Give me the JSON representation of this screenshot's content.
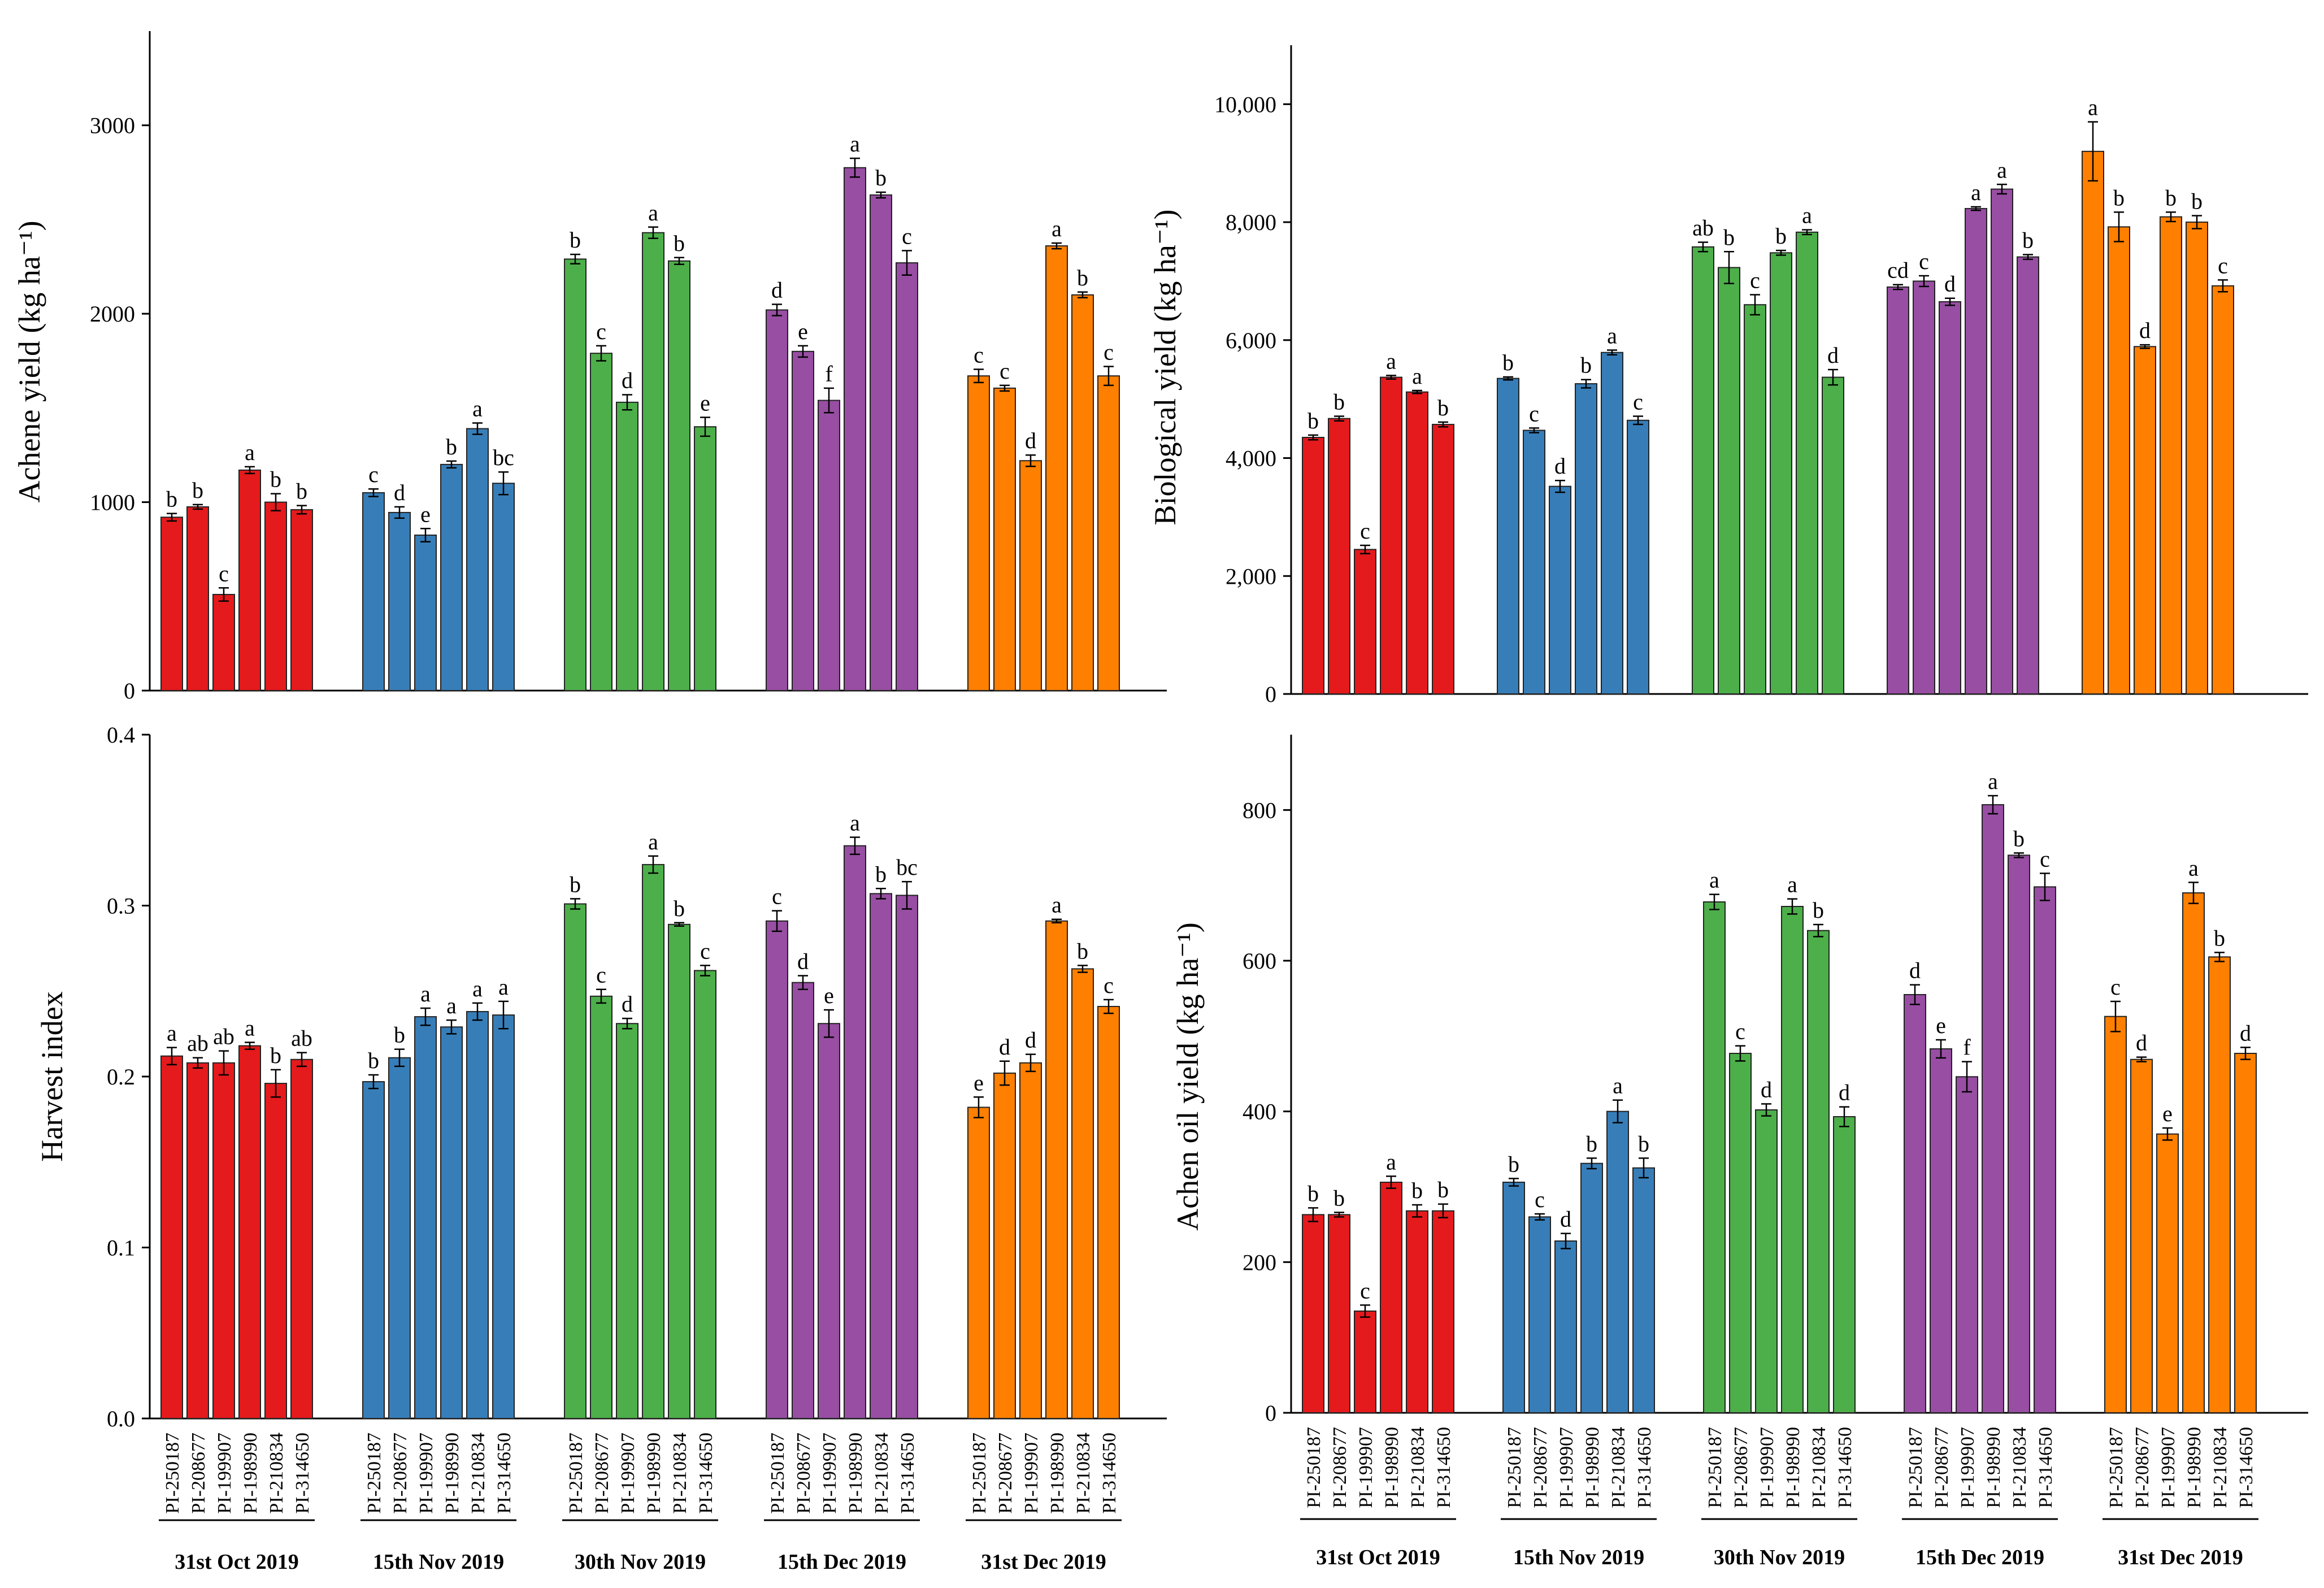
{
  "colors": {
    "31st Oct 2019": "#e41a1c",
    "15th Nov 2019": "#377eb8",
    "30th Nov 2019": "#4daf4a",
    "15th Dec 2019": "#984ea3",
    "31st Dec 2019": "#ff7f00"
  },
  "chart_data": [
    {
      "type": "bar",
      "ylabel": "Achene yield (kg ha⁻¹)",
      "ylim": [
        0,
        3500
      ],
      "yticks": [
        0,
        1000,
        2000,
        3000
      ],
      "ytick_labels": [
        "0",
        "1000",
        "2000",
        "3000"
      ],
      "groups": [
        "31st Oct 2019",
        "15th Nov 2019",
        "30th Nov 2019",
        "15th Dec 2019",
        "31st Dec 2019"
      ],
      "categories": [
        "PI-250187",
        "PI-208677",
        "PI-199907",
        "PI-198990",
        "PI-210834",
        "PI-314650"
      ],
      "series": [
        {
          "name": "31st Oct 2019",
          "values": [
            920,
            975,
            510,
            1170,
            1000,
            960
          ],
          "errors": [
            20,
            12,
            35,
            18,
            45,
            22
          ],
          "letters": [
            "b",
            "b",
            "c",
            "a",
            "b",
            "b"
          ]
        },
        {
          "name": "15th Nov 2019",
          "values": [
            1050,
            945,
            825,
            1200,
            1390,
            1100
          ],
          "errors": [
            20,
            30,
            35,
            18,
            30,
            60
          ],
          "letters": [
            "c",
            "d",
            "e",
            "b",
            "a",
            "bc"
          ]
        },
        {
          "name": "30th Nov 2019",
          "values": [
            2290,
            1790,
            1530,
            2430,
            2280,
            1400
          ],
          "errors": [
            25,
            40,
            40,
            30,
            18,
            50
          ],
          "letters": [
            "b",
            "c",
            "d",
            "a",
            "b",
            "e"
          ]
        },
        {
          "name": "15th Dec 2019",
          "values": [
            2020,
            1800,
            1540,
            2775,
            2630,
            2270
          ],
          "errors": [
            30,
            30,
            65,
            50,
            15,
            65
          ],
          "letters": [
            "d",
            "e",
            "f",
            "a",
            "b",
            "c"
          ]
        },
        {
          "name": "31st Dec 2019",
          "values": [
            1670,
            1605,
            1220,
            2360,
            2100,
            1670
          ],
          "errors": [
            35,
            15,
            30,
            15,
            15,
            50
          ],
          "letters": [
            "c",
            "c",
            "d",
            "a",
            "b",
            "c"
          ]
        }
      ]
    },
    {
      "type": "bar",
      "ylabel": "Biological yield (kg ha⁻¹)",
      "ylim": [
        0,
        11000
      ],
      "yticks": [
        0,
        2000,
        4000,
        6000,
        8000,
        10000
      ],
      "ytick_labels": [
        "0",
        "2,000",
        "4,000",
        "6,000",
        "8,000",
        "10,000"
      ],
      "groups": [
        "31st Oct 2019",
        "15th Nov 2019",
        "30th Nov 2019",
        "15th Dec 2019",
        "31st Dec 2019"
      ],
      "categories": [
        "PI-250187",
        "PI-208677",
        "PI-199907",
        "PI-198990",
        "PI-210834",
        "PI-314650"
      ],
      "series": [
        {
          "name": "31st Oct 2019",
          "values": [
            4350,
            4670,
            2450,
            5370,
            5120,
            4570
          ],
          "errors": [
            40,
            40,
            70,
            30,
            25,
            40
          ],
          "letters": [
            "b",
            "b",
            "c",
            "a",
            "a",
            "b"
          ]
        },
        {
          "name": "15th Nov 2019",
          "values": [
            5350,
            4470,
            3520,
            5260,
            5790,
            4640
          ],
          "errors": [
            25,
            40,
            100,
            70,
            40,
            70
          ],
          "letters": [
            "b",
            "c",
            "d",
            "b",
            "a",
            "c"
          ]
        },
        {
          "name": "30th Nov 2019",
          "values": [
            7580,
            7230,
            6600,
            7480,
            7830,
            5370
          ],
          "errors": [
            80,
            270,
            170,
            40,
            40,
            130
          ],
          "letters": [
            "ab",
            "b",
            "c",
            "b",
            "a",
            "d"
          ]
        },
        {
          "name": "15th Dec 2019",
          "values": [
            6900,
            7000,
            6650,
            8230,
            8560,
            7410
          ],
          "errors": [
            40,
            90,
            60,
            30,
            80,
            40
          ],
          "letters": [
            "cd",
            "c",
            "d",
            "a",
            "a",
            "b"
          ]
        },
        {
          "name": "31st Dec 2019",
          "values": [
            9200,
            7920,
            5890,
            8090,
            8000,
            6920
          ],
          "errors": [
            500,
            250,
            30,
            80,
            110,
            100
          ],
          "letters": [
            "a",
            "b",
            "d",
            "b",
            "b",
            "c"
          ]
        }
      ]
    },
    {
      "type": "bar",
      "ylabel": "Harvest index",
      "ylim": [
        0,
        0.4
      ],
      "yticks": [
        0,
        0.1,
        0.2,
        0.3,
        0.4
      ],
      "ytick_labels": [
        "0.0",
        "0.1",
        "0.2",
        "0.3",
        "0.4"
      ],
      "groups": [
        "31st Oct 2019",
        "15th Nov 2019",
        "30th Nov 2019",
        "15th Dec 2019",
        "31st Dec 2019"
      ],
      "categories": [
        "PI-250187",
        "PI-208677",
        "PI-199907",
        "PI-198990",
        "PI-210834",
        "PI-314650"
      ],
      "series": [
        {
          "name": "31st Oct 2019",
          "values": [
            0.212,
            0.208,
            0.208,
            0.218,
            0.196,
            0.21
          ],
          "errors": [
            0.005,
            0.003,
            0.007,
            0.002,
            0.008,
            0.004
          ],
          "letters": [
            "a",
            "ab",
            "ab",
            "a",
            "b",
            "ab"
          ]
        },
        {
          "name": "15th Nov 2019",
          "values": [
            0.197,
            0.211,
            0.235,
            0.229,
            0.238,
            0.236
          ],
          "errors": [
            0.004,
            0.005,
            0.005,
            0.004,
            0.005,
            0.008
          ],
          "letters": [
            "b",
            "b",
            "a",
            "a",
            "a",
            "a"
          ]
        },
        {
          "name": "30th Nov 2019",
          "values": [
            0.301,
            0.247,
            0.231,
            0.324,
            0.289,
            0.262
          ],
          "errors": [
            0.003,
            0.004,
            0.003,
            0.005,
            0.001,
            0.003
          ],
          "letters": [
            "b",
            "c",
            "d",
            "a",
            "b",
            "c"
          ]
        },
        {
          "name": "15th Dec 2019",
          "values": [
            0.291,
            0.255,
            0.231,
            0.335,
            0.307,
            0.306
          ],
          "errors": [
            0.006,
            0.004,
            0.008,
            0.005,
            0.003,
            0.008
          ],
          "letters": [
            "c",
            "d",
            "e",
            "a",
            "b",
            "bc"
          ]
        },
        {
          "name": "31st Dec 2019",
          "values": [
            0.182,
            0.202,
            0.208,
            0.291,
            0.263,
            0.241
          ],
          "errors": [
            0.006,
            0.007,
            0.005,
            0.001,
            0.002,
            0.004
          ],
          "letters": [
            "e",
            "d",
            "d",
            "a",
            "b",
            "c"
          ]
        }
      ]
    },
    {
      "type": "bar",
      "ylabel": "Achen oil yield (kg ha⁻¹)",
      "ylim": [
        0,
        900
      ],
      "yticks": [
        0,
        200,
        400,
        600,
        800
      ],
      "ytick_labels": [
        "0",
        "200",
        "400",
        "600",
        "800"
      ],
      "groups": [
        "31st Oct 2019",
        "15th Nov 2019",
        "30th Nov 2019",
        "15th Dec 2019",
        "31st Dec 2019"
      ],
      "categories": [
        "PI-250187",
        "PI-208677",
        "PI-199907",
        "PI-198990",
        "PI-210834",
        "PI-314650"
      ],
      "series": [
        {
          "name": "31st Oct 2019",
          "values": [
            263,
            263,
            135,
            306,
            268,
            268
          ],
          "errors": [
            9,
            3,
            8,
            8,
            8,
            9
          ],
          "letters": [
            "b",
            "b",
            "c",
            "a",
            "b",
            "b"
          ]
        },
        {
          "name": "15th Nov 2019",
          "values": [
            306,
            260,
            228,
            331,
            400,
            325
          ],
          "errors": [
            5,
            4,
            10,
            7,
            15,
            13
          ],
          "letters": [
            "b",
            "c",
            "d",
            "b",
            "a",
            "b"
          ]
        },
        {
          "name": "30th Nov 2019",
          "values": [
            678,
            477,
            402,
            672,
            640,
            393
          ],
          "errors": [
            10,
            10,
            8,
            10,
            8,
            13
          ],
          "letters": [
            "a",
            "c",
            "d",
            "a",
            "b",
            "d"
          ]
        },
        {
          "name": "15th Dec 2019",
          "values": [
            555,
            483,
            446,
            807,
            740,
            698
          ],
          "errors": [
            13,
            12,
            20,
            12,
            3,
            18
          ],
          "letters": [
            "d",
            "e",
            "f",
            "a",
            "b",
            "c"
          ]
        },
        {
          "name": "31st Dec 2019",
          "values": [
            526,
            469,
            370,
            690,
            605,
            477
          ],
          "errors": [
            20,
            3,
            8,
            14,
            6,
            8
          ],
          "letters": [
            "c",
            "d",
            "e",
            "a",
            "b",
            "d"
          ]
        }
      ]
    }
  ]
}
